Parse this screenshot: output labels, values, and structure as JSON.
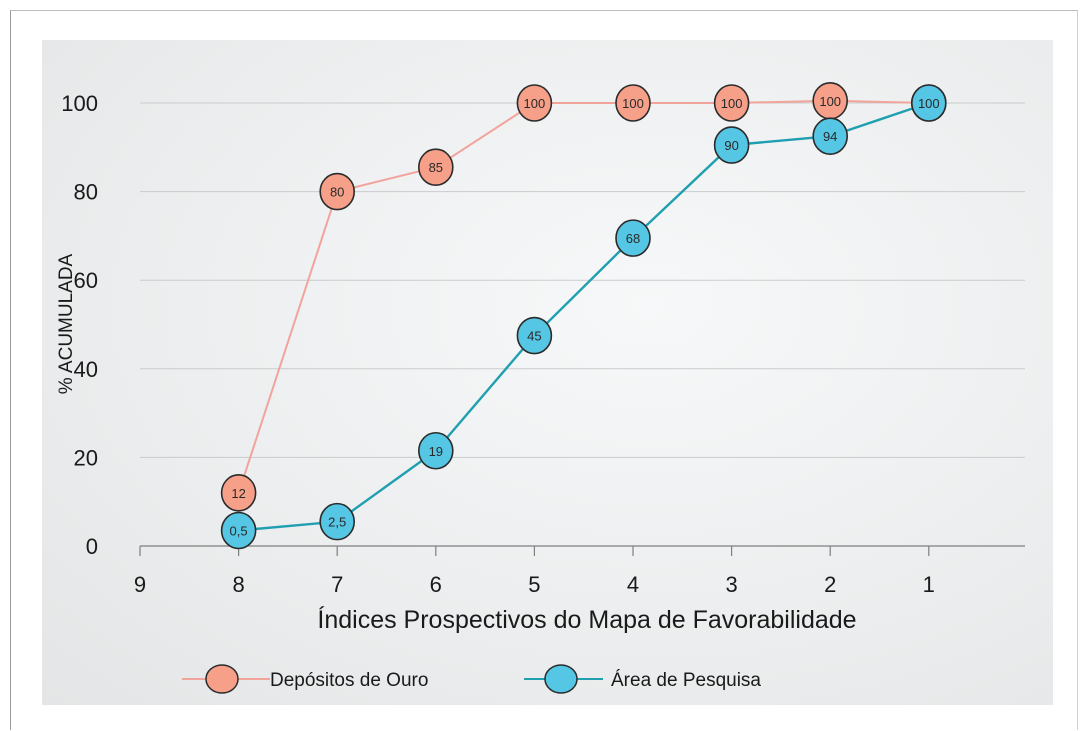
{
  "chart_data": {
    "type": "line",
    "xlabel": "Índices  Prospectivos do Mapa de Favorabilidade",
    "ylabel": "% ACUMULADA",
    "x_ticks": [
      "9",
      "8",
      "7",
      "6",
      "5",
      "4",
      "3",
      "2",
      "1"
    ],
    "y_ticks": [
      "0",
      "20",
      "40",
      "60",
      "80",
      "100"
    ],
    "xlim": [
      9,
      1
    ],
    "ylim": [
      0,
      100
    ],
    "grid": true,
    "legend_position": "bottom",
    "x": [
      8,
      7,
      6,
      5,
      4,
      3,
      2,
      1
    ],
    "series": [
      {
        "name": "Depósitos de Ouro",
        "values": [
          12,
          80,
          85,
          100,
          100,
          100,
          100,
          100
        ],
        "plot_values": [
          12,
          80,
          85.5,
          100,
          100,
          100,
          100.5,
          100
        ],
        "labels": [
          "12",
          "80",
          "85",
          "100",
          "100",
          "100",
          "100",
          "100"
        ],
        "line_color": "#f2a39b",
        "marker_color": "#f7a089"
      },
      {
        "name": "Área de Pesquisa",
        "values": [
          0.5,
          2.5,
          19,
          45,
          68,
          90,
          94,
          100
        ],
        "plot_values": [
          3.5,
          5.5,
          21.5,
          47.5,
          69.5,
          90.5,
          92.5,
          100
        ],
        "labels": [
          "0,5",
          "2,5",
          "19",
          "45",
          "68",
          "90",
          "94",
          "100"
        ],
        "line_color": "#1f9fb0",
        "marker_color": "#55c6e4"
      }
    ]
  }
}
